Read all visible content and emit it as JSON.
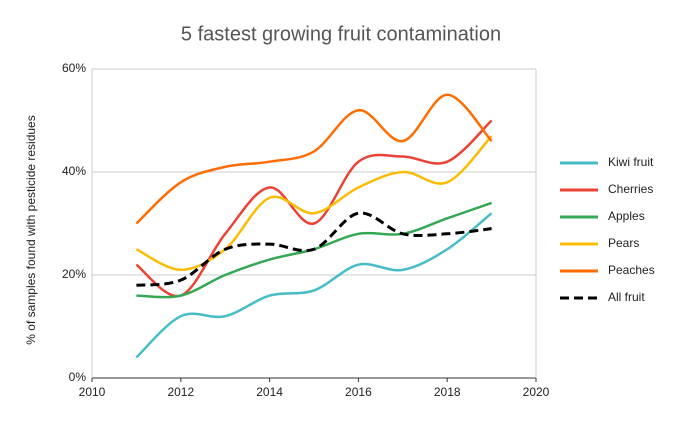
{
  "chart_data": {
    "type": "line",
    "title": "5 fastest growing fruit contamination",
    "y_label": "% of samples found with pesticide residues",
    "x": [
      2011,
      2012,
      2013,
      2014,
      2015,
      2016,
      2017,
      2018,
      2019
    ],
    "series": [
      {
        "name": "Kiwi fruit",
        "color": "#46bdc6",
        "values": [
          4,
          12,
          12,
          16,
          17,
          22,
          21,
          25,
          32
        ]
      },
      {
        "name": "Cherries",
        "color": "#ea4335",
        "values": [
          22,
          16,
          28,
          37,
          30,
          42,
          43,
          42,
          50
        ]
      },
      {
        "name": "Apples",
        "color": "#34a853",
        "values": [
          16,
          16,
          20,
          23,
          25,
          28,
          28,
          31,
          34
        ]
      },
      {
        "name": "Pears",
        "color": "#fbbc04",
        "values": [
          25,
          21,
          25,
          35,
          32,
          37,
          40,
          38,
          47
        ]
      },
      {
        "name": "Peaches",
        "color": "#ff6d01",
        "values": [
          30,
          38,
          41,
          42,
          44,
          52,
          46,
          55,
          46
        ]
      },
      {
        "name": "All fruit",
        "color": "#000000",
        "dashed": true,
        "values": [
          18,
          19,
          25,
          26,
          25,
          32,
          28,
          28,
          29
        ]
      }
    ],
    "xlim": [
      2010,
      2020
    ],
    "xticks": [
      2010,
      2012,
      2014,
      2016,
      2018,
      2020
    ],
    "ylim": [
      0,
      60
    ],
    "yticks": [
      {
        "value": 0,
        "label": "0%"
      },
      {
        "value": 20,
        "label": "20%"
      },
      {
        "value": 40,
        "label": "40%"
      },
      {
        "value": 60,
        "label": "60%"
      }
    ],
    "grid": true,
    "legend": "right"
  }
}
